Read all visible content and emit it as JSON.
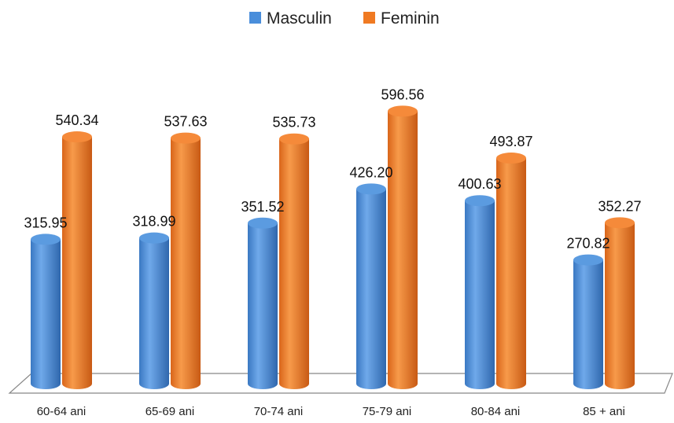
{
  "chart_data": {
    "type": "bar",
    "title": "",
    "xlabel": "",
    "ylabel": "",
    "categories": [
      "60-64 ani",
      "65-69 ani",
      "70-74 ani",
      "75-79 ani",
      "80-84 ani",
      "85 + ani"
    ],
    "series": [
      {
        "name": "Masculin",
        "color": "#4A8EDB",
        "values": [
          315.95,
          318.99,
          351.52,
          426.2,
          400.63,
          270.82
        ],
        "labels": [
          "315.95",
          "318.99",
          "351.52",
          "426.20",
          "400.63",
          "270.82"
        ]
      },
      {
        "name": "Feminin",
        "color": "#F07A22",
        "values": [
          540.34,
          537.63,
          535.73,
          596.56,
          493.87,
          352.27
        ],
        "labels": [
          "540.34",
          "537.63",
          "535.73",
          "596.56",
          "493.87",
          "352.27"
        ]
      }
    ],
    "ylim": [
      0,
      650
    ],
    "grid": false,
    "legend": "top-center",
    "style": "3d-cylinder"
  }
}
